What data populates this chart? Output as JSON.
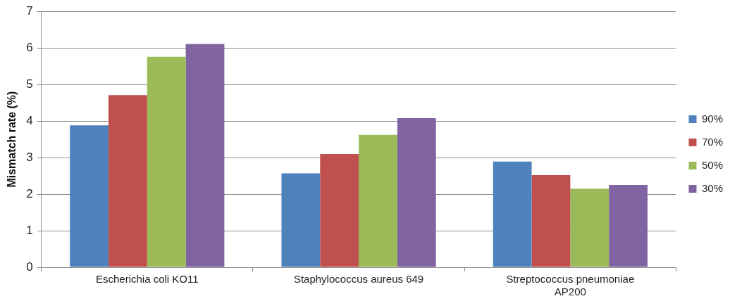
{
  "chart_data": {
    "type": "bar",
    "ylabel": "Mismatch rate (%)",
    "categories": [
      "Escherichia coli KO11",
      "Staphylococcus aureus 649",
      "Streptococcus pneumoniae AP200"
    ],
    "series": [
      {
        "name": "90%",
        "color": "#4f81bd",
        "values": [
          3.88,
          2.57,
          2.89
        ]
      },
      {
        "name": "70%",
        "color": "#c0504d",
        "values": [
          4.71,
          3.1,
          2.52
        ]
      },
      {
        "name": "50%",
        "color": "#9bbb59",
        "values": [
          5.76,
          3.62,
          2.15
        ]
      },
      {
        "name": "30%",
        "color": "#8064a2",
        "values": [
          6.11,
          4.08,
          2.25
        ]
      }
    ],
    "ylim": [
      0,
      7
    ],
    "yticks": [
      0,
      1,
      2,
      3,
      4,
      5,
      6,
      7
    ],
    "grid": "y",
    "legend": "right"
  }
}
